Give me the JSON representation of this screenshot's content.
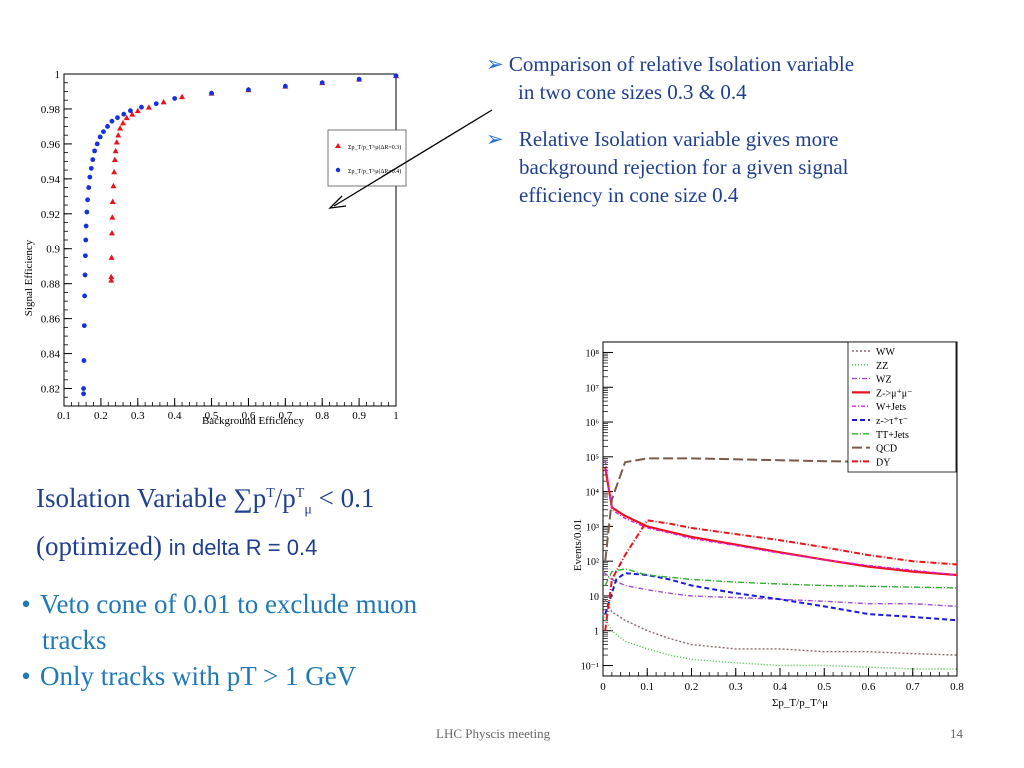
{
  "bullets_top": [
    {
      "line1": "Comparison of  relative Isolation variable",
      "line2": "in two cone sizes 0.3 & 0.4"
    },
    {
      "line1": "Relative Isolation variable  gives more",
      "line2": "background rejection for a given signal",
      "line3": "efficiency in cone size 0.4"
    }
  ],
  "arrow_symbol": "➢",
  "isolation": {
    "line1_prefix": "Isolation Variable  ∑p",
    "sup_T1": "T",
    "mid": "/p",
    "sup_T2": "T",
    "sub_mu": "μ",
    "line1_suffix": "  < 0.1",
    "line2_serif": "(optimized) ",
    "line2_sans": "in delta R = 0.4"
  },
  "bottom_bullets": [
    {
      "line1": "Veto cone of  0.01  to exclude muon",
      "line2": "tracks"
    },
    {
      "line1": "Only tracks with pT > 1 GeV"
    }
  ],
  "bullet_dot": "•",
  "footer": {
    "title": "LHC Physcis meeting",
    "page": "14"
  },
  "colors": {
    "text_blue": "#1f3f8f",
    "bullet_blue": "#1f78b8",
    "red": "#e8141c",
    "blue_series": "#1530e0"
  },
  "chart_data": [
    {
      "type": "scatter",
      "title": "",
      "xlabel": "Background Efficiency",
      "ylabel": "Signal Efficiency",
      "xlim": [
        0.1,
        1.0
      ],
      "ylim": [
        0.81,
        1.0
      ],
      "xticks": [
        "0.1",
        "0.2",
        "0.3",
        "0.4",
        "0.5",
        "0.6",
        "0.7",
        "0.8",
        "0.9",
        "1"
      ],
      "yticks": [
        "0.82",
        "0.84",
        "0.86",
        "0.88",
        "0.9",
        "0.92",
        "0.94",
        "0.96",
        "0.98",
        "1"
      ],
      "legend": {
        "placement": "right",
        "entries": [
          "Σp_T/p_T^μ(ΔR=0.3)",
          "Σp_T/p_T^μ(ΔR=0.4)"
        ]
      },
      "series": [
        {
          "name": "Σp_T/p_T^μ(ΔR=0.3)",
          "marker": "triangle",
          "color": "#e8141c",
          "points": [
            [
              0.228,
              0.882
            ],
            [
              0.228,
              0.884
            ],
            [
              0.229,
              0.895
            ],
            [
              0.23,
              0.909
            ],
            [
              0.231,
              0.918
            ],
            [
              0.232,
              0.927
            ],
            [
              0.234,
              0.936
            ],
            [
              0.236,
              0.944
            ],
            [
              0.238,
              0.951
            ],
            [
              0.24,
              0.956
            ],
            [
              0.243,
              0.961
            ],
            [
              0.247,
              0.965
            ],
            [
              0.252,
              0.969
            ],
            [
              0.26,
              0.972
            ],
            [
              0.27,
              0.975
            ],
            [
              0.285,
              0.977
            ],
            [
              0.3,
              0.979
            ],
            [
              0.33,
              0.981
            ],
            [
              0.37,
              0.984
            ],
            [
              0.42,
              0.987
            ],
            [
              0.5,
              0.989
            ],
            [
              0.6,
              0.991
            ],
            [
              0.7,
              0.993
            ],
            [
              0.8,
              0.995
            ],
            [
              0.9,
              0.997
            ],
            [
              1.0,
              0.999
            ]
          ]
        },
        {
          "name": "Σp_T/p_T^μ(ΔR=0.4)",
          "marker": "circle",
          "color": "#1530e0",
          "points": [
            [
              0.153,
              0.817
            ],
            [
              0.153,
              0.82
            ],
            [
              0.154,
              0.836
            ],
            [
              0.155,
              0.856
            ],
            [
              0.156,
              0.873
            ],
            [
              0.157,
              0.885
            ],
            [
              0.158,
              0.896
            ],
            [
              0.159,
              0.905
            ],
            [
              0.16,
              0.913
            ],
            [
              0.162,
              0.921
            ],
            [
              0.164,
              0.928
            ],
            [
              0.167,
              0.935
            ],
            [
              0.17,
              0.941
            ],
            [
              0.174,
              0.946
            ],
            [
              0.178,
              0.951
            ],
            [
              0.183,
              0.956
            ],
            [
              0.19,
              0.96
            ],
            [
              0.198,
              0.964
            ],
            [
              0.207,
              0.967
            ],
            [
              0.218,
              0.97
            ],
            [
              0.23,
              0.973
            ],
            [
              0.245,
              0.975
            ],
            [
              0.262,
              0.977
            ],
            [
              0.28,
              0.979
            ],
            [
              0.31,
              0.981
            ],
            [
              0.35,
              0.983
            ],
            [
              0.4,
              0.986
            ],
            [
              0.5,
              0.989
            ],
            [
              0.6,
              0.991
            ],
            [
              0.7,
              0.993
            ],
            [
              0.8,
              0.995
            ],
            [
              0.9,
              0.997
            ],
            [
              1.0,
              0.999
            ]
          ]
        }
      ]
    },
    {
      "type": "line",
      "title": "",
      "xlabel": "Σp_T/p_T^μ",
      "ylabel": "Events/0.01",
      "log_y": true,
      "xlim": [
        0,
        0.8
      ],
      "ylim": [
        0.05,
        200000000
      ],
      "xticks": [
        "0",
        "0.1",
        "0.2",
        "0.3",
        "0.4",
        "0.5",
        "0.6",
        "0.7",
        "0.8"
      ],
      "yticks": [
        "10⁻¹",
        "1",
        "10",
        "10²",
        "10³",
        "10⁴",
        "10⁵",
        "10⁶",
        "10⁷",
        "10⁸"
      ],
      "legend": {
        "placement": "top-right",
        "entries": [
          "WW",
          "ZZ",
          "WZ",
          "Z->μ⁺μ⁻",
          "W+Jets",
          "z->τ⁺τ⁻",
          "TT+Jets",
          "QCD",
          "DY"
        ]
      },
      "series": [
        {
          "name": "WW",
          "color": "#8c6a6a",
          "x": [
            0,
            0.02,
            0.05,
            0.1,
            0.15,
            0.2,
            0.3,
            0.4,
            0.5,
            0.6,
            0.7,
            0.8
          ],
          "y": [
            10,
            3.5,
            2,
            1,
            0.6,
            0.4,
            0.3,
            0.3,
            0.25,
            0.25,
            0.22,
            0.2
          ]
        },
        {
          "name": "ZZ",
          "color": "#3cc43c",
          "x": [
            0,
            0.02,
            0.05,
            0.1,
            0.15,
            0.2,
            0.3,
            0.4,
            0.5,
            0.6,
            0.7,
            0.8
          ],
          "y": [
            3,
            1,
            0.5,
            0.3,
            0.2,
            0.15,
            0.12,
            0.1,
            0.1,
            0.09,
            0.08,
            0.08
          ]
        },
        {
          "name": "WZ",
          "color": "#a050d0",
          "x": [
            0,
            0.02,
            0.05,
            0.1,
            0.15,
            0.2,
            0.3,
            0.4,
            0.5,
            0.6,
            0.7,
            0.8
          ],
          "y": [
            50,
            30,
            20,
            15,
            12,
            10,
            9,
            8,
            7,
            6,
            6,
            5
          ]
        },
        {
          "name": "Z->μ⁺μ⁻",
          "color": "#e8141c",
          "x": [
            0.005,
            0.02,
            0.05,
            0.1,
            0.15,
            0.2,
            0.3,
            0.4,
            0.5,
            0.6,
            0.7,
            0.8
          ],
          "y": [
            50000,
            3500,
            2000,
            1000,
            700,
            500,
            300,
            180,
            110,
            70,
            50,
            40
          ]
        },
        {
          "name": "W+Jets",
          "color": "#e020e0",
          "x": [
            0.005,
            0.02,
            0.05,
            0.1,
            0.15,
            0.2,
            0.3,
            0.4,
            0.5,
            0.6,
            0.7,
            0.8
          ],
          "y": [
            80000,
            3000,
            1700,
            900,
            650,
            450,
            280,
            170,
            110,
            75,
            55,
            40
          ]
        },
        {
          "name": "z->τ⁺τ⁻",
          "color": "#1a1ad8",
          "x": [
            0.005,
            0.03,
            0.05,
            0.1,
            0.15,
            0.2,
            0.3,
            0.4,
            0.5,
            0.6,
            0.7,
            0.8
          ],
          "y": [
            3,
            30,
            45,
            40,
            30,
            20,
            12,
            8,
            5,
            3,
            2.5,
            2
          ]
        },
        {
          "name": "TT+Jets",
          "color": "#30b030",
          "x": [
            0.005,
            0.02,
            0.05,
            0.1,
            0.2,
            0.3,
            0.4,
            0.5,
            0.6,
            0.7,
            0.8
          ],
          "y": [
            20,
            50,
            60,
            40,
            30,
            25,
            22,
            20,
            19,
            18,
            17
          ]
        },
        {
          "name": "QCD",
          "color": "#7a5a4a",
          "x": [
            0.005,
            0.02,
            0.05,
            0.1,
            0.2,
            0.3,
            0.4,
            0.5,
            0.6,
            0.7,
            0.8
          ],
          "y": [
            100,
            6000,
            70000,
            90000,
            90000,
            85000,
            80000,
            75000,
            72000,
            70000,
            68000
          ]
        },
        {
          "name": "DY",
          "color": "#e8141c",
          "x": [
            0.005,
            0.02,
            0.05,
            0.1,
            0.15,
            0.2,
            0.3,
            0.4,
            0.5,
            0.6,
            0.7,
            0.8
          ],
          "y": [
            1,
            30,
            150,
            1500,
            1200,
            900,
            600,
            400,
            250,
            150,
            100,
            80
          ]
        }
      ]
    }
  ]
}
